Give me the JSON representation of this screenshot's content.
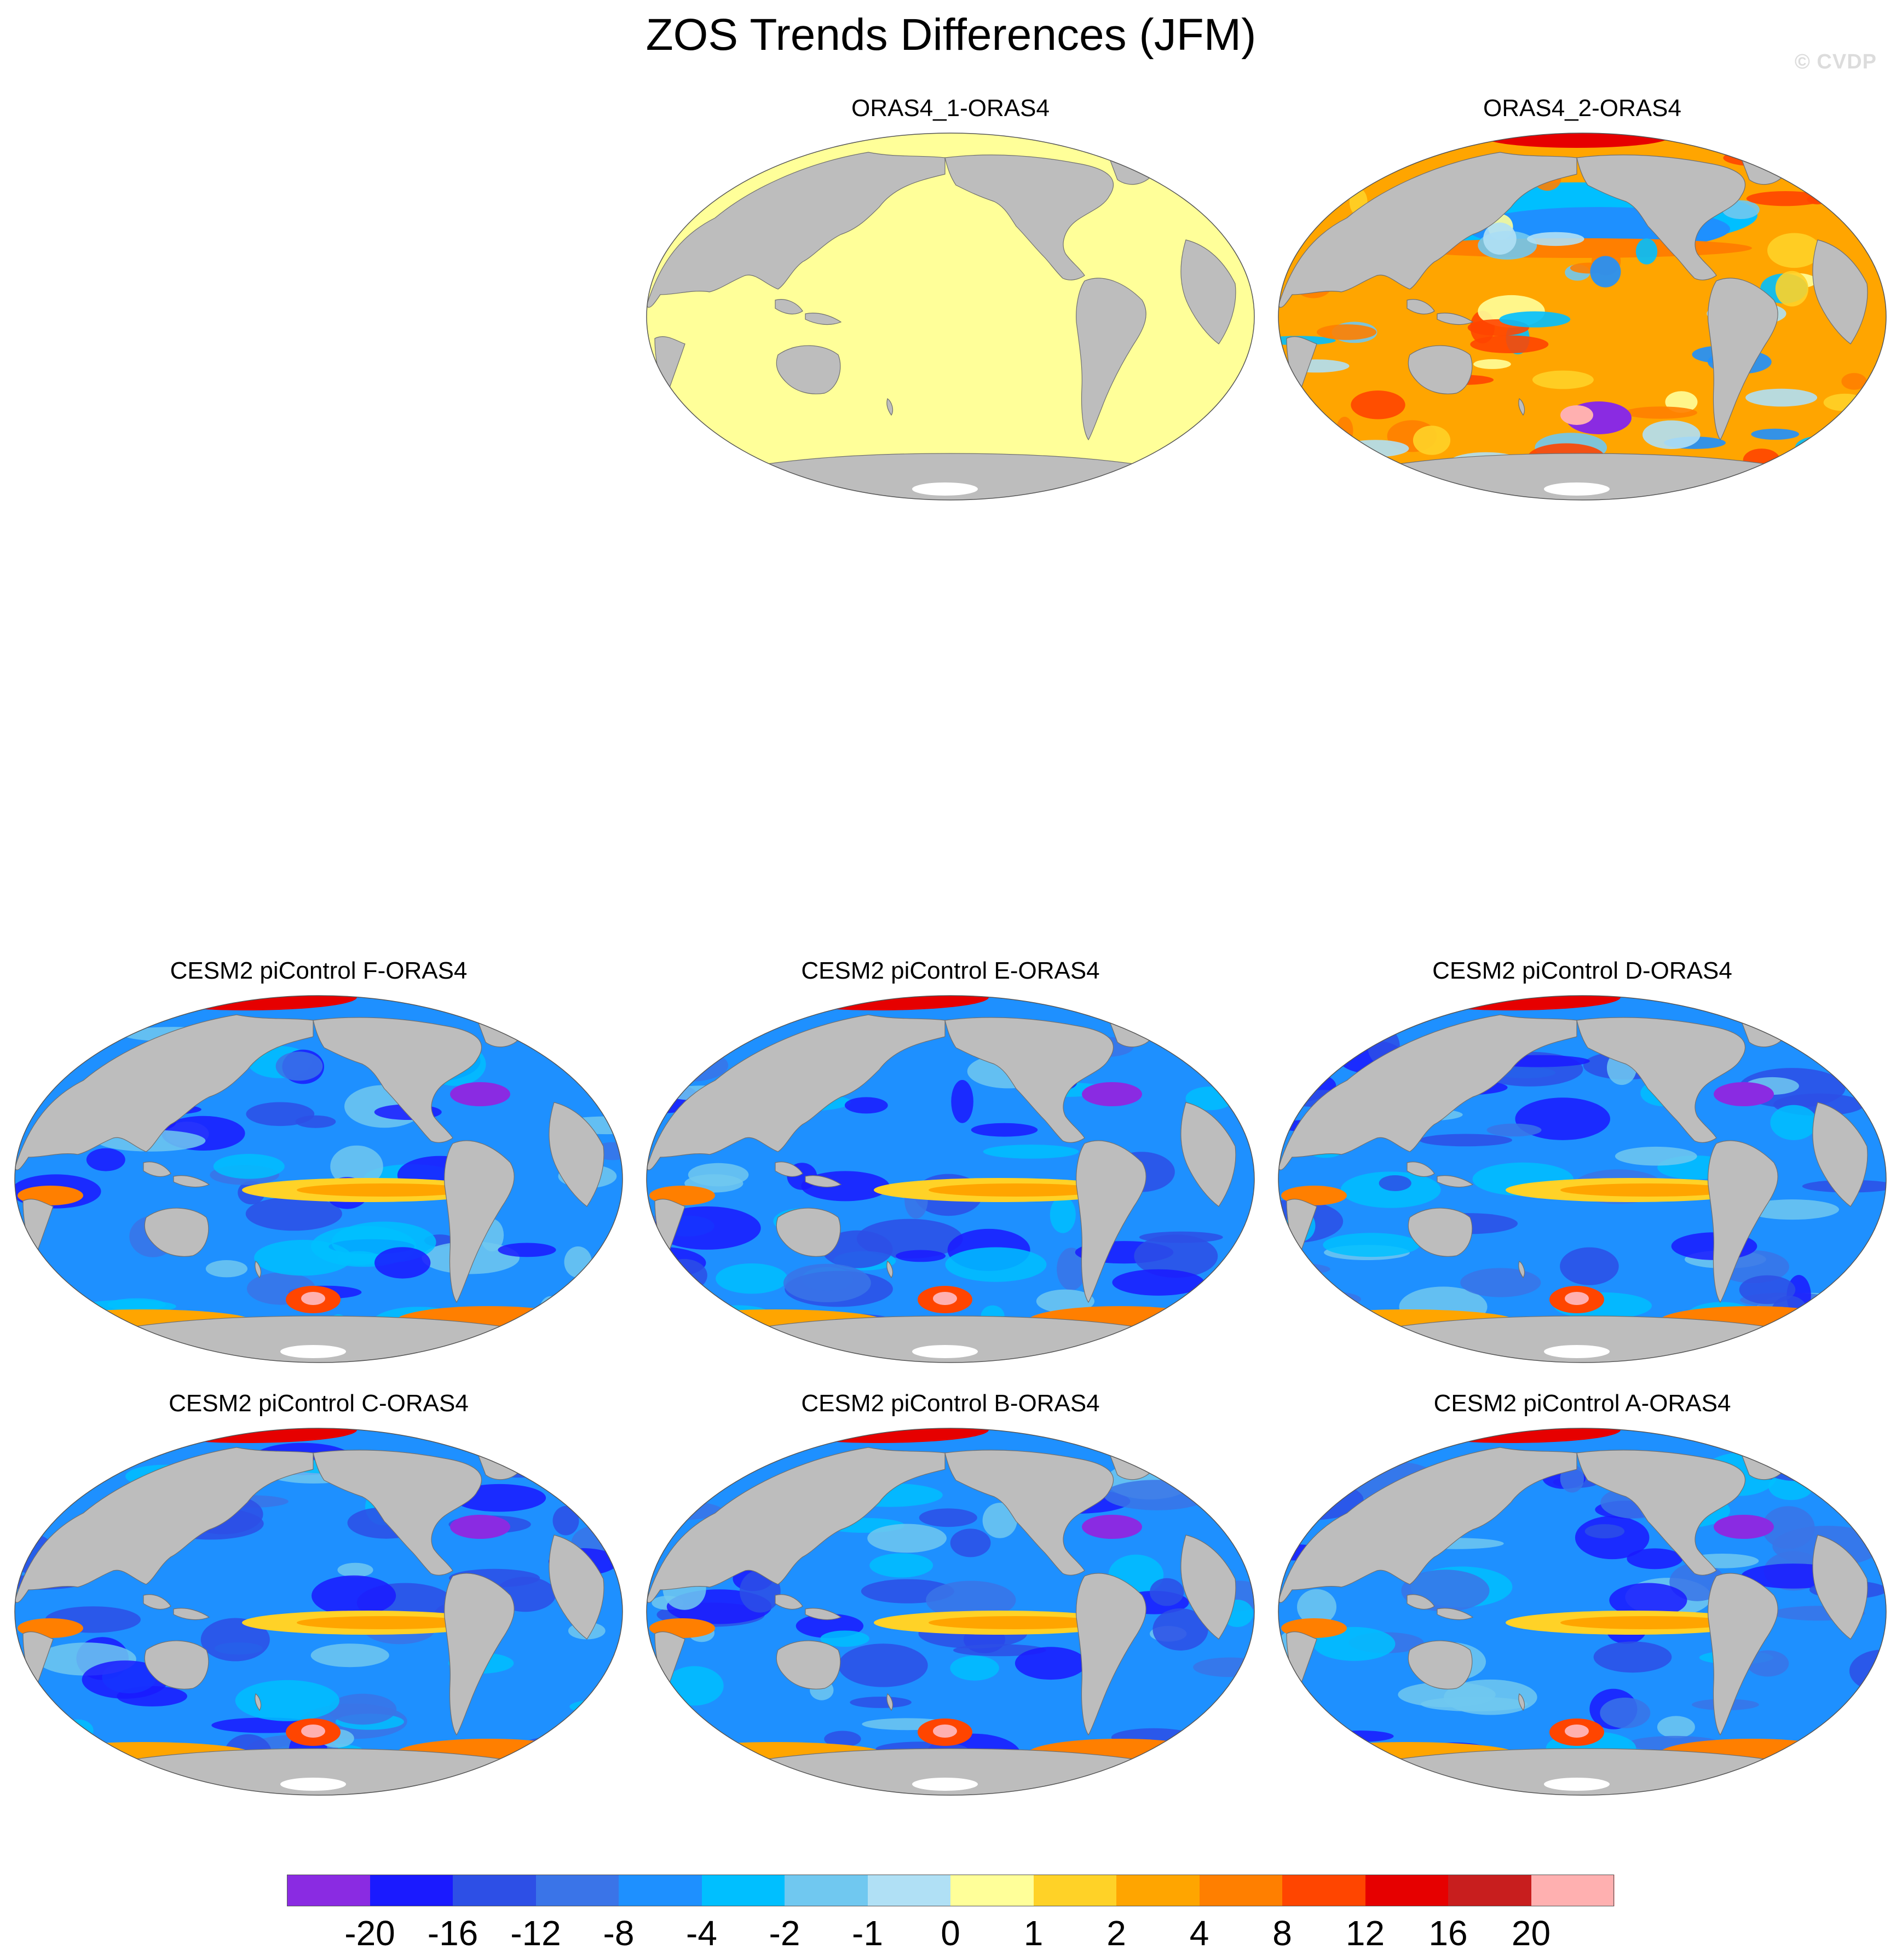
{
  "title": "ZOS Trends Differences (JFM)",
  "watermark": "© CVDP",
  "colors": {
    "land": "#bdbdbd",
    "land_outline": "#6f6f6f",
    "antarctica_ice": "#ffffff",
    "background": "#ffffff"
  },
  "panels": [
    {
      "id": "oras4_1",
      "label": "ORAS4_1-ORAS4",
      "pattern": "uniform-zero"
    },
    {
      "id": "oras4_2",
      "label": "ORAS4_2-ORAS4",
      "pattern": "mostly-positive"
    },
    {
      "id": "cesm_f",
      "label": "CESM2 piControl F-ORAS4",
      "pattern": "mostly-negative"
    },
    {
      "id": "cesm_e",
      "label": "CESM2 piControl E-ORAS4",
      "pattern": "mostly-negative"
    },
    {
      "id": "cesm_d",
      "label": "CESM2 piControl D-ORAS4",
      "pattern": "mostly-negative"
    },
    {
      "id": "cesm_c",
      "label": "CESM2 piControl C-ORAS4",
      "pattern": "mostly-negative"
    },
    {
      "id": "cesm_b",
      "label": "CESM2 piControl B-ORAS4",
      "pattern": "mostly-negative"
    },
    {
      "id": "cesm_a",
      "label": "CESM2 piControl A-ORAS4",
      "pattern": "mostly-negative"
    }
  ],
  "colorbar": {
    "colors": [
      "#8a2be2",
      "#1a1aff",
      "#2d4fe6",
      "#3a74e8",
      "#1e90ff",
      "#00bfff",
      "#70c8f0",
      "#b0e0f5",
      "#ffff99",
      "#ffd227",
      "#ffa500",
      "#ff7f00",
      "#ff4500",
      "#e60000",
      "#c81e1e",
      "#ffb0b0"
    ],
    "tick_labels": [
      "-20",
      "-16",
      "-12",
      "-8",
      "-4",
      "-2",
      "-1",
      "0",
      "1",
      "2",
      "4",
      "8",
      "12",
      "16",
      "20"
    ]
  }
}
